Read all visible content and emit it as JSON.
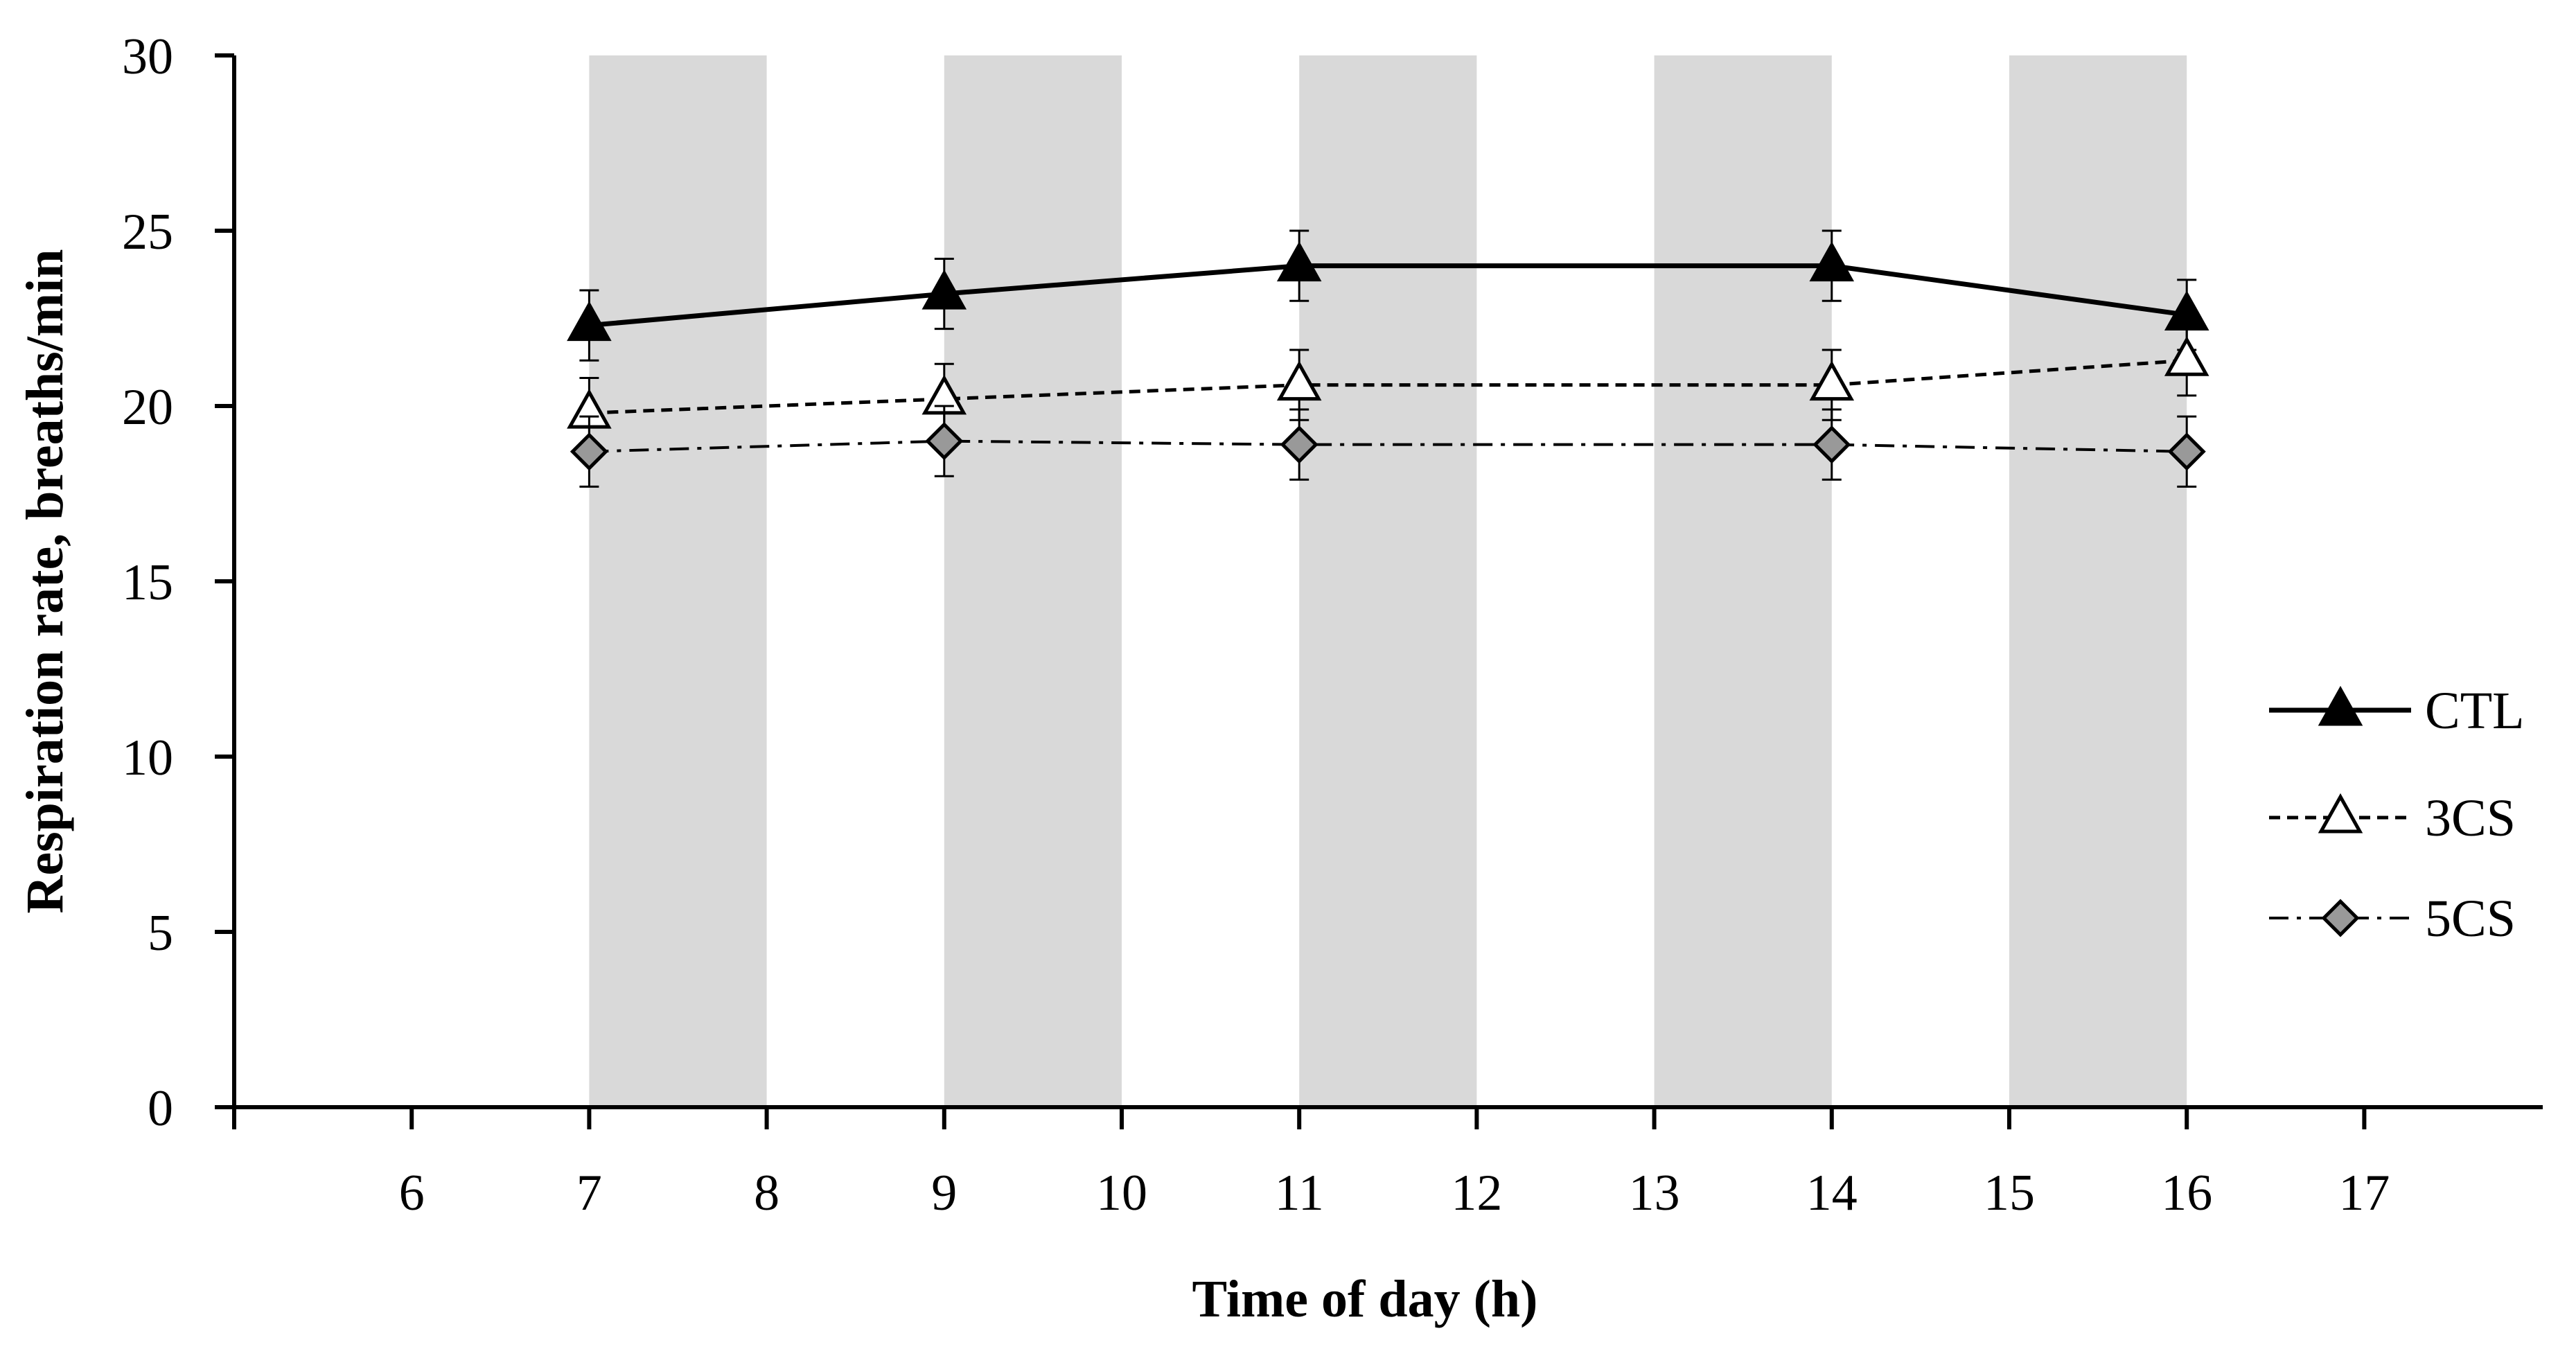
{
  "chart_data": {
    "type": "line",
    "title": "",
    "xlabel": "Time of day  (h)",
    "ylabel": "Respiration rate, breaths/min",
    "ylim": [
      0,
      30
    ],
    "yticks": [
      0,
      5,
      10,
      15,
      20,
      25,
      30
    ],
    "categories": [
      "6",
      "7",
      "8",
      "9",
      "10",
      "11",
      "12",
      "13",
      "14",
      "15",
      "16",
      "17"
    ],
    "shaded_categories": [
      "7",
      "9",
      "11",
      "13",
      "15"
    ],
    "colors": {
      "shade": "#d9d9d9",
      "ctl_marker": "#000000",
      "cs3_marker": "#ffffff",
      "cs5_marker": "#999999"
    },
    "series": [
      {
        "name": "CTL",
        "line": "solid",
        "marker": "filled-triangle",
        "x": [
          "7",
          "9",
          "11",
          "14",
          "16"
        ],
        "values": [
          22.3,
          23.2,
          24.0,
          24.0,
          22.6
        ],
        "error": [
          1.0,
          1.0,
          1.0,
          1.0,
          1.0
        ]
      },
      {
        "name": "3CS",
        "line": "dashed",
        "marker": "open-triangle",
        "x": [
          "7",
          "9",
          "11",
          "14",
          "16"
        ],
        "values": [
          19.8,
          20.2,
          20.6,
          20.6,
          21.3
        ],
        "error": [
          1.0,
          1.0,
          1.0,
          1.0,
          1.0
        ]
      },
      {
        "name": "5CS",
        "line": "dash-dot",
        "marker": "gray-diamond",
        "x": [
          "7",
          "9",
          "11",
          "14",
          "16"
        ],
        "values": [
          18.7,
          19.0,
          18.9,
          18.9,
          18.7
        ],
        "error": [
          1.0,
          1.0,
          1.0,
          1.0,
          1.0
        ]
      }
    ],
    "legend": {
      "position": "right",
      "entries": [
        "CTL",
        "3CS",
        "5CS"
      ]
    }
  }
}
